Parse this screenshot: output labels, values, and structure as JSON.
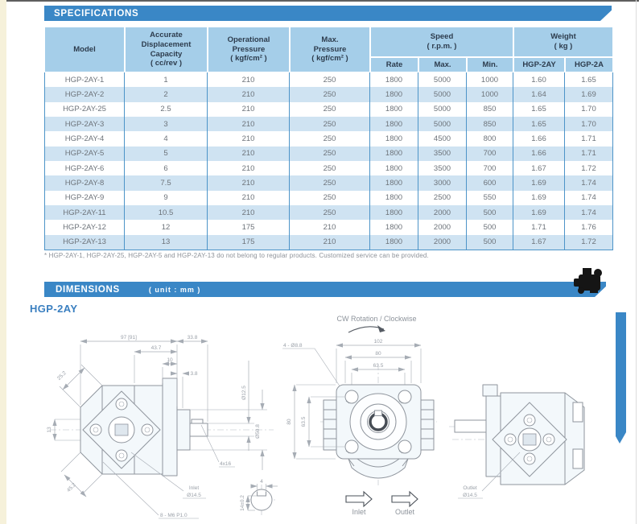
{
  "colors": {
    "banner_blue": "#3a87c6",
    "header_cell_blue": "#a5cee9",
    "alt_row_blue": "#cfe3f2",
    "table_border_blue": "#4d94c8",
    "header_text": "#2d3c4d",
    "body_text": "#6d737a",
    "model_label_blue": "#3a7fc0"
  },
  "specifications": {
    "banner": "SPECIFICATIONS",
    "footnote": "* HGP-2AY-1, HGP-2AY-25, HGP-2AY-5 and HGP-2AY-13 do not belong to regular products. Customized service can be provided.",
    "table": {
      "col_model": "Model",
      "col_capacity": "Accurate\nDisplacement\nCapacity\n( cc/rev )",
      "col_op_pressure": "Operational\nPressure\n( kgf/cm² )",
      "col_max_pressure": "Max.\nPressure\n( kgf/cm² )",
      "col_speed": "Speed\n( r.p.m. )",
      "col_weight": "Weight\n( kg )",
      "sub_rate": "Rate",
      "sub_max": "Max.",
      "sub_min": "Min.",
      "sub_hgp2ay": "HGP-2AY",
      "sub_hgp2a": "HGP-2A",
      "rows": [
        {
          "model": "HGP-2AY-1",
          "capacity": "1",
          "op_pressure": "210",
          "max_pressure": "250",
          "rate": "1800",
          "max": "5000",
          "min": "1000",
          "weight_2ay": "1.60",
          "weight_2a": "1.65"
        },
        {
          "model": "HGP-2AY-2",
          "capacity": "2",
          "op_pressure": "210",
          "max_pressure": "250",
          "rate": "1800",
          "max": "5000",
          "min": "1000",
          "weight_2ay": "1.64",
          "weight_2a": "1.69"
        },
        {
          "model": "HGP-2AY-25",
          "capacity": "2.5",
          "op_pressure": "210",
          "max_pressure": "250",
          "rate": "1800",
          "max": "5000",
          "min": "850",
          "weight_2ay": "1.65",
          "weight_2a": "1.70"
        },
        {
          "model": "HGP-2AY-3",
          "capacity": "3",
          "op_pressure": "210",
          "max_pressure": "250",
          "rate": "1800",
          "max": "5000",
          "min": "850",
          "weight_2ay": "1.65",
          "weight_2a": "1.70"
        },
        {
          "model": "HGP-2AY-4",
          "capacity": "4",
          "op_pressure": "210",
          "max_pressure": "250",
          "rate": "1800",
          "max": "4500",
          "min": "800",
          "weight_2ay": "1.66",
          "weight_2a": "1.71"
        },
        {
          "model": "HGP-2AY-5",
          "capacity": "5",
          "op_pressure": "210",
          "max_pressure": "250",
          "rate": "1800",
          "max": "3500",
          "min": "700",
          "weight_2ay": "1.66",
          "weight_2a": "1.71"
        },
        {
          "model": "HGP-2AY-6",
          "capacity": "6",
          "op_pressure": "210",
          "max_pressure": "250",
          "rate": "1800",
          "max": "3500",
          "min": "700",
          "weight_2ay": "1.67",
          "weight_2a": "1.72"
        },
        {
          "model": "HGP-2AY-8",
          "capacity": "7.5",
          "op_pressure": "210",
          "max_pressure": "250",
          "rate": "1800",
          "max": "3000",
          "min": "600",
          "weight_2ay": "1.69",
          "weight_2a": "1.74"
        },
        {
          "model": "HGP-2AY-9",
          "capacity": "9",
          "op_pressure": "210",
          "max_pressure": "250",
          "rate": "1800",
          "max": "2500",
          "min": "550",
          "weight_2ay": "1.69",
          "weight_2a": "1.74"
        },
        {
          "model": "HGP-2AY-11",
          "capacity": "10.5",
          "op_pressure": "210",
          "max_pressure": "250",
          "rate": "1800",
          "max": "2000",
          "min": "500",
          "weight_2ay": "1.69",
          "weight_2a": "1.74"
        },
        {
          "model": "HGP-2AY-12",
          "capacity": "12",
          "op_pressure": "175",
          "max_pressure": "210",
          "rate": "1800",
          "max": "2000",
          "min": "500",
          "weight_2ay": "1.71",
          "weight_2a": "1.76"
        },
        {
          "model": "HGP-2AY-13",
          "capacity": "13",
          "op_pressure": "175",
          "max_pressure": "210",
          "rate": "1800",
          "max": "2000",
          "min": "500",
          "weight_2ay": "1.67",
          "weight_2a": "1.72"
        }
      ]
    }
  },
  "dimensions": {
    "banner": "DIMENSIONS",
    "unit": "( unit : mm )",
    "model": "HGP-2AY",
    "side_view": {
      "total_width": "97 [91]",
      "shaft_length": "33.8",
      "front_section": "43.7",
      "plate_width": "10",
      "step": "3.8",
      "corner_top": "25.2",
      "shaft_dia": "Ø12.5",
      "pilot_dia": "Ø50.8",
      "key_offset": "13",
      "corner_bottom": "45.2",
      "key_size": "4x16",
      "inlet_word": "Inlet",
      "inlet_dia": "Ø14.5",
      "mount_thread": "8 - M6 P1.0"
    },
    "key_section": {
      "width": "4",
      "height": "14±0.2"
    },
    "front_view": {
      "rotation": "CW Rotation / Clockwise",
      "bolt_holes": "4 - Ø8.8",
      "w1": "102",
      "w2": "80",
      "w3": "63.5",
      "h1": "80",
      "h2": "63.5",
      "inlet": "Inlet",
      "outlet": "Outlet"
    },
    "rear_view": {
      "outlet_word": "Outlet",
      "outlet_dia": "Ø14.5"
    }
  }
}
